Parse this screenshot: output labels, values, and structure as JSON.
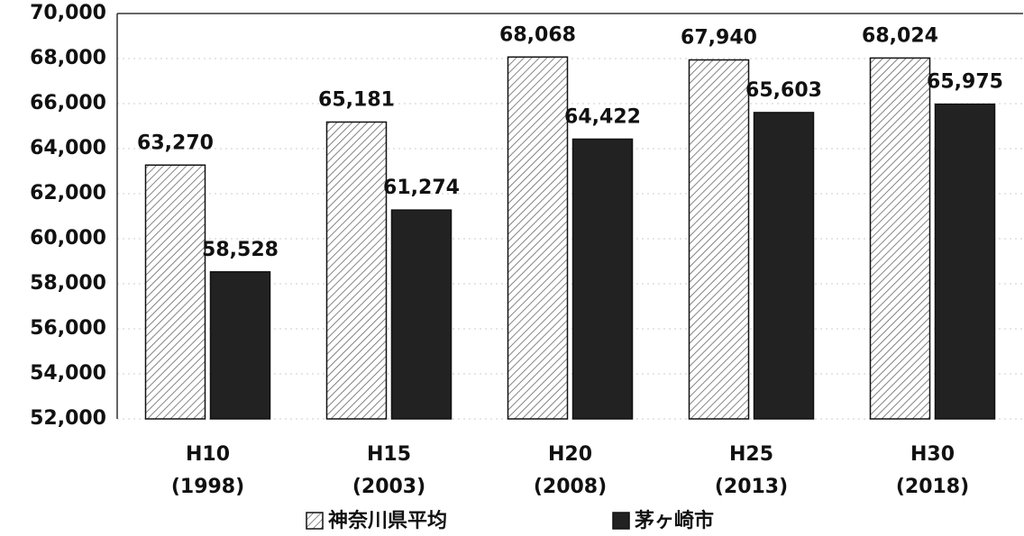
{
  "chart_data": {
    "type": "bar",
    "categories": [
      [
        "H10",
        "(1998)"
      ],
      [
        "H15",
        "(2003)"
      ],
      [
        "H20",
        "(2008)"
      ],
      [
        "H25",
        "(2013)"
      ],
      [
        "H30",
        "(2018)"
      ]
    ],
    "series": [
      {
        "name": "神奈川県平均",
        "color": "hatched",
        "values": [
          63270,
          65181,
          68068,
          67940,
          68024
        ],
        "value_labels": [
          "63,270",
          "65,181",
          "68,068",
          "67,940",
          "68,024"
        ]
      },
      {
        "name": "茅ヶ崎市",
        "color": "#222222",
        "values": [
          58528,
          61274,
          64422,
          65603,
          65975
        ],
        "value_labels": [
          "58,528",
          "61,274",
          "64,422",
          "65,603",
          "65,975"
        ]
      }
    ],
    "ylim": [
      52000,
      70000
    ],
    "yticks": [
      {
        "value": 52000,
        "label": "52,000"
      },
      {
        "value": 54000,
        "label": "54,000"
      },
      {
        "value": 56000,
        "label": "56,000"
      },
      {
        "value": 58000,
        "label": "58,000"
      },
      {
        "value": 60000,
        "label": "60,000"
      },
      {
        "value": 62000,
        "label": "62,000"
      },
      {
        "value": 64000,
        "label": "64,000"
      },
      {
        "value": 66000,
        "label": "66,000"
      },
      {
        "value": 68000,
        "label": "68,000"
      },
      {
        "value": 70000,
        "label": "70,000"
      }
    ],
    "grid": true,
    "legend": "bottom"
  }
}
